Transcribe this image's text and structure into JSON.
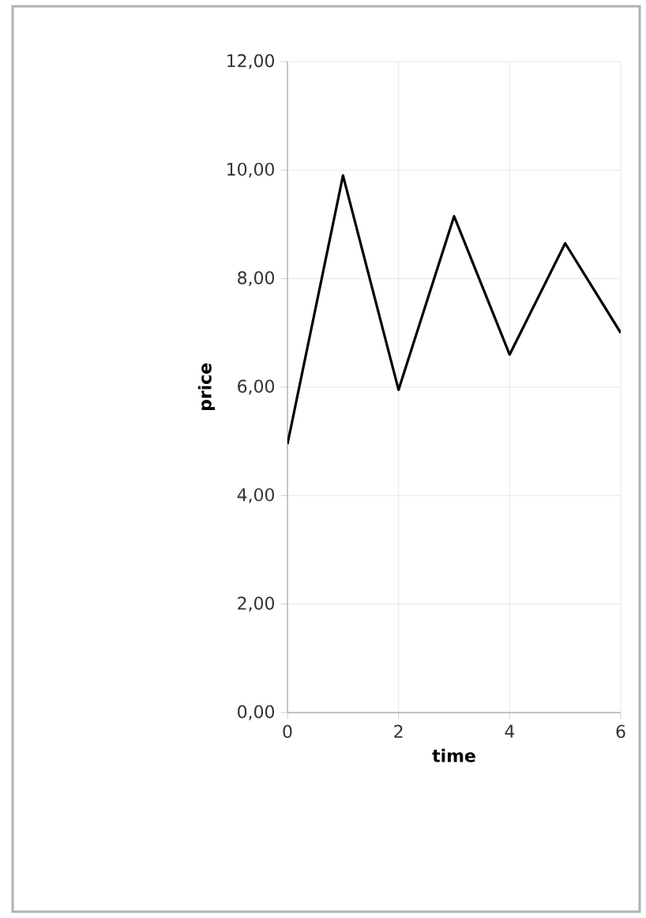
{
  "chart_data": {
    "type": "line",
    "xlabel": "time",
    "ylabel": "price",
    "x": [
      0,
      1,
      2,
      3,
      4,
      5,
      6
    ],
    "values": [
      4.95,
      9.9,
      5.95,
      9.15,
      6.6,
      8.65,
      7.0
    ],
    "color": "#000000",
    "xlim": [
      0,
      6
    ],
    "xticks": [
      0,
      2,
      4,
      6
    ],
    "ylim": [
      0,
      12
    ],
    "yticks": [
      {
        "value": 0,
        "label": "0,00"
      },
      {
        "value": 2,
        "label": "2,00"
      },
      {
        "value": 4,
        "label": "4,00"
      },
      {
        "value": 6,
        "label": "6,00"
      },
      {
        "value": 8,
        "label": "8,00"
      },
      {
        "value": 10,
        "label": "10,00"
      },
      {
        "value": 12,
        "label": "12,00"
      }
    ],
    "grid": true
  }
}
